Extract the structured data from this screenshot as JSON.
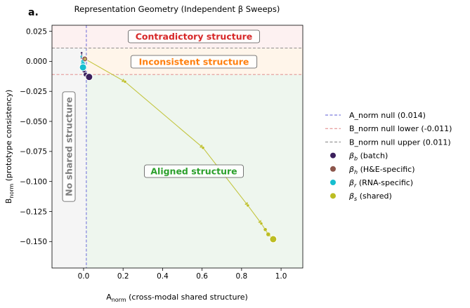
{
  "panel_label": "a.",
  "chart_data": {
    "type": "scatter",
    "title": "Representation Geometry (Independent β Sweeps)",
    "xlabel": {
      "main": "A",
      "sub": "norm",
      "rest": " (cross-modal shared structure)"
    },
    "ylabel": {
      "main": "B",
      "sub": "norm",
      "rest": " (prototype consistency)"
    },
    "xlim": [
      -0.16,
      1.11
    ],
    "ylim": [
      -0.172,
      0.03
    ],
    "xticks": [
      0.0,
      0.2,
      0.4,
      0.6,
      0.8,
      1.0
    ],
    "xtick_labels": [
      "0.0",
      "0.2",
      "0.4",
      "0.6",
      "0.8",
      "1.0"
    ],
    "yticks": [
      0.025,
      0.0,
      -0.025,
      -0.05,
      -0.075,
      -0.1,
      -0.125,
      -0.15
    ],
    "ytick_labels": [
      "0.025",
      "0.000",
      "−0.025",
      "−0.050",
      "−0.075",
      "−0.100",
      "−0.125",
      "−0.150"
    ],
    "grid": false,
    "legend_position": "right",
    "thresholds": {
      "a_norm_null": 0.014,
      "b_norm_null_lower": -0.011,
      "b_norm_null_upper": 0.011
    },
    "regions": {
      "contradictory": {
        "label": "Contradictory structure",
        "color": "#d62728",
        "fill": "#fdf1f1"
      },
      "inconsistent": {
        "label": "Inconsistent structure",
        "color": "#ff7f0e",
        "fill": "#fff5ea"
      },
      "none": {
        "label": "No shared structure",
        "color": "#7f7f7f",
        "fill": "#f5f5f5"
      },
      "aligned": {
        "label": "Aligned structure",
        "color": "#2ca02c",
        "fill": "#eef6ee"
      }
    },
    "legend": [
      {
        "label": "A_norm null (0.014)",
        "kind": "line",
        "color": "#5b5bd6"
      },
      {
        "label": "B_norm null lower (-0.011)",
        "kind": "line",
        "color": "#e08080"
      },
      {
        "label": "B_norm null upper (0.011)",
        "kind": "line",
        "color": "#808080"
      },
      {
        "sym": "β",
        "sub": "b",
        "rest": " (batch)",
        "kind": "point",
        "color": "#3b1f5c"
      },
      {
        "sym": "β",
        "sub": "h",
        "rest": " (H&E-specific)",
        "kind": "point",
        "color": "#8c564b"
      },
      {
        "sym": "β",
        "sub": "r",
        "rest": " (RNA-specific)",
        "kind": "point",
        "color": "#17becf"
      },
      {
        "sym": "β",
        "sub": "s",
        "rest": " (shared)",
        "kind": "point",
        "color": "#bcbd22"
      }
    ],
    "series": [
      {
        "name": "β_b (batch)",
        "color": "#3b1f5c",
        "points": [
          {
            "x": -0.01,
            "y": 0.007,
            "s": 1.5
          },
          {
            "x": -0.008,
            "y": 0.003,
            "s": 2
          },
          {
            "x": -0.004,
            "y": -0.003,
            "s": 2
          },
          {
            "x": 0.002,
            "y": -0.008,
            "s": 2.5
          },
          {
            "x": 0.01,
            "y": -0.011,
            "s": 3
          },
          {
            "x": 0.028,
            "y": -0.013,
            "s": 5
          }
        ]
      },
      {
        "name": "β_h (H&E-specific)",
        "color": "#8c564b",
        "points": [
          {
            "x": -0.003,
            "y": 0.003,
            "s": 1.5
          },
          {
            "x": 0.002,
            "y": 0.003,
            "s": 2.5
          },
          {
            "x": 0.006,
            "y": 0.002,
            "s": 4
          }
        ]
      },
      {
        "name": "β_r (RNA-specific)",
        "color": "#17becf",
        "points": [
          {
            "x": -0.012,
            "y": 0.004,
            "s": 1.5
          },
          {
            "x": -0.006,
            "y": 0.0,
            "s": 2
          },
          {
            "x": -0.003,
            "y": -0.002,
            "s": 3
          },
          {
            "x": -0.003,
            "y": -0.005,
            "s": 5
          }
        ]
      },
      {
        "name": "β_s (shared)",
        "color": "#bcbd22",
        "points": [
          {
            "x": 0.007,
            "y": 0.002,
            "s": 1.5
          },
          {
            "x": 0.21,
            "y": -0.017,
            "s": 2
          },
          {
            "x": 0.605,
            "y": -0.072,
            "s": 2
          },
          {
            "x": 0.832,
            "y": -0.12,
            "s": 2
          },
          {
            "x": 0.9,
            "y": -0.135,
            "s": 2
          },
          {
            "x": 0.92,
            "y": -0.14,
            "s": 2.5
          },
          {
            "x": 0.935,
            "y": -0.144,
            "s": 3
          },
          {
            "x": 0.96,
            "y": -0.148,
            "s": 5
          }
        ]
      }
    ]
  }
}
